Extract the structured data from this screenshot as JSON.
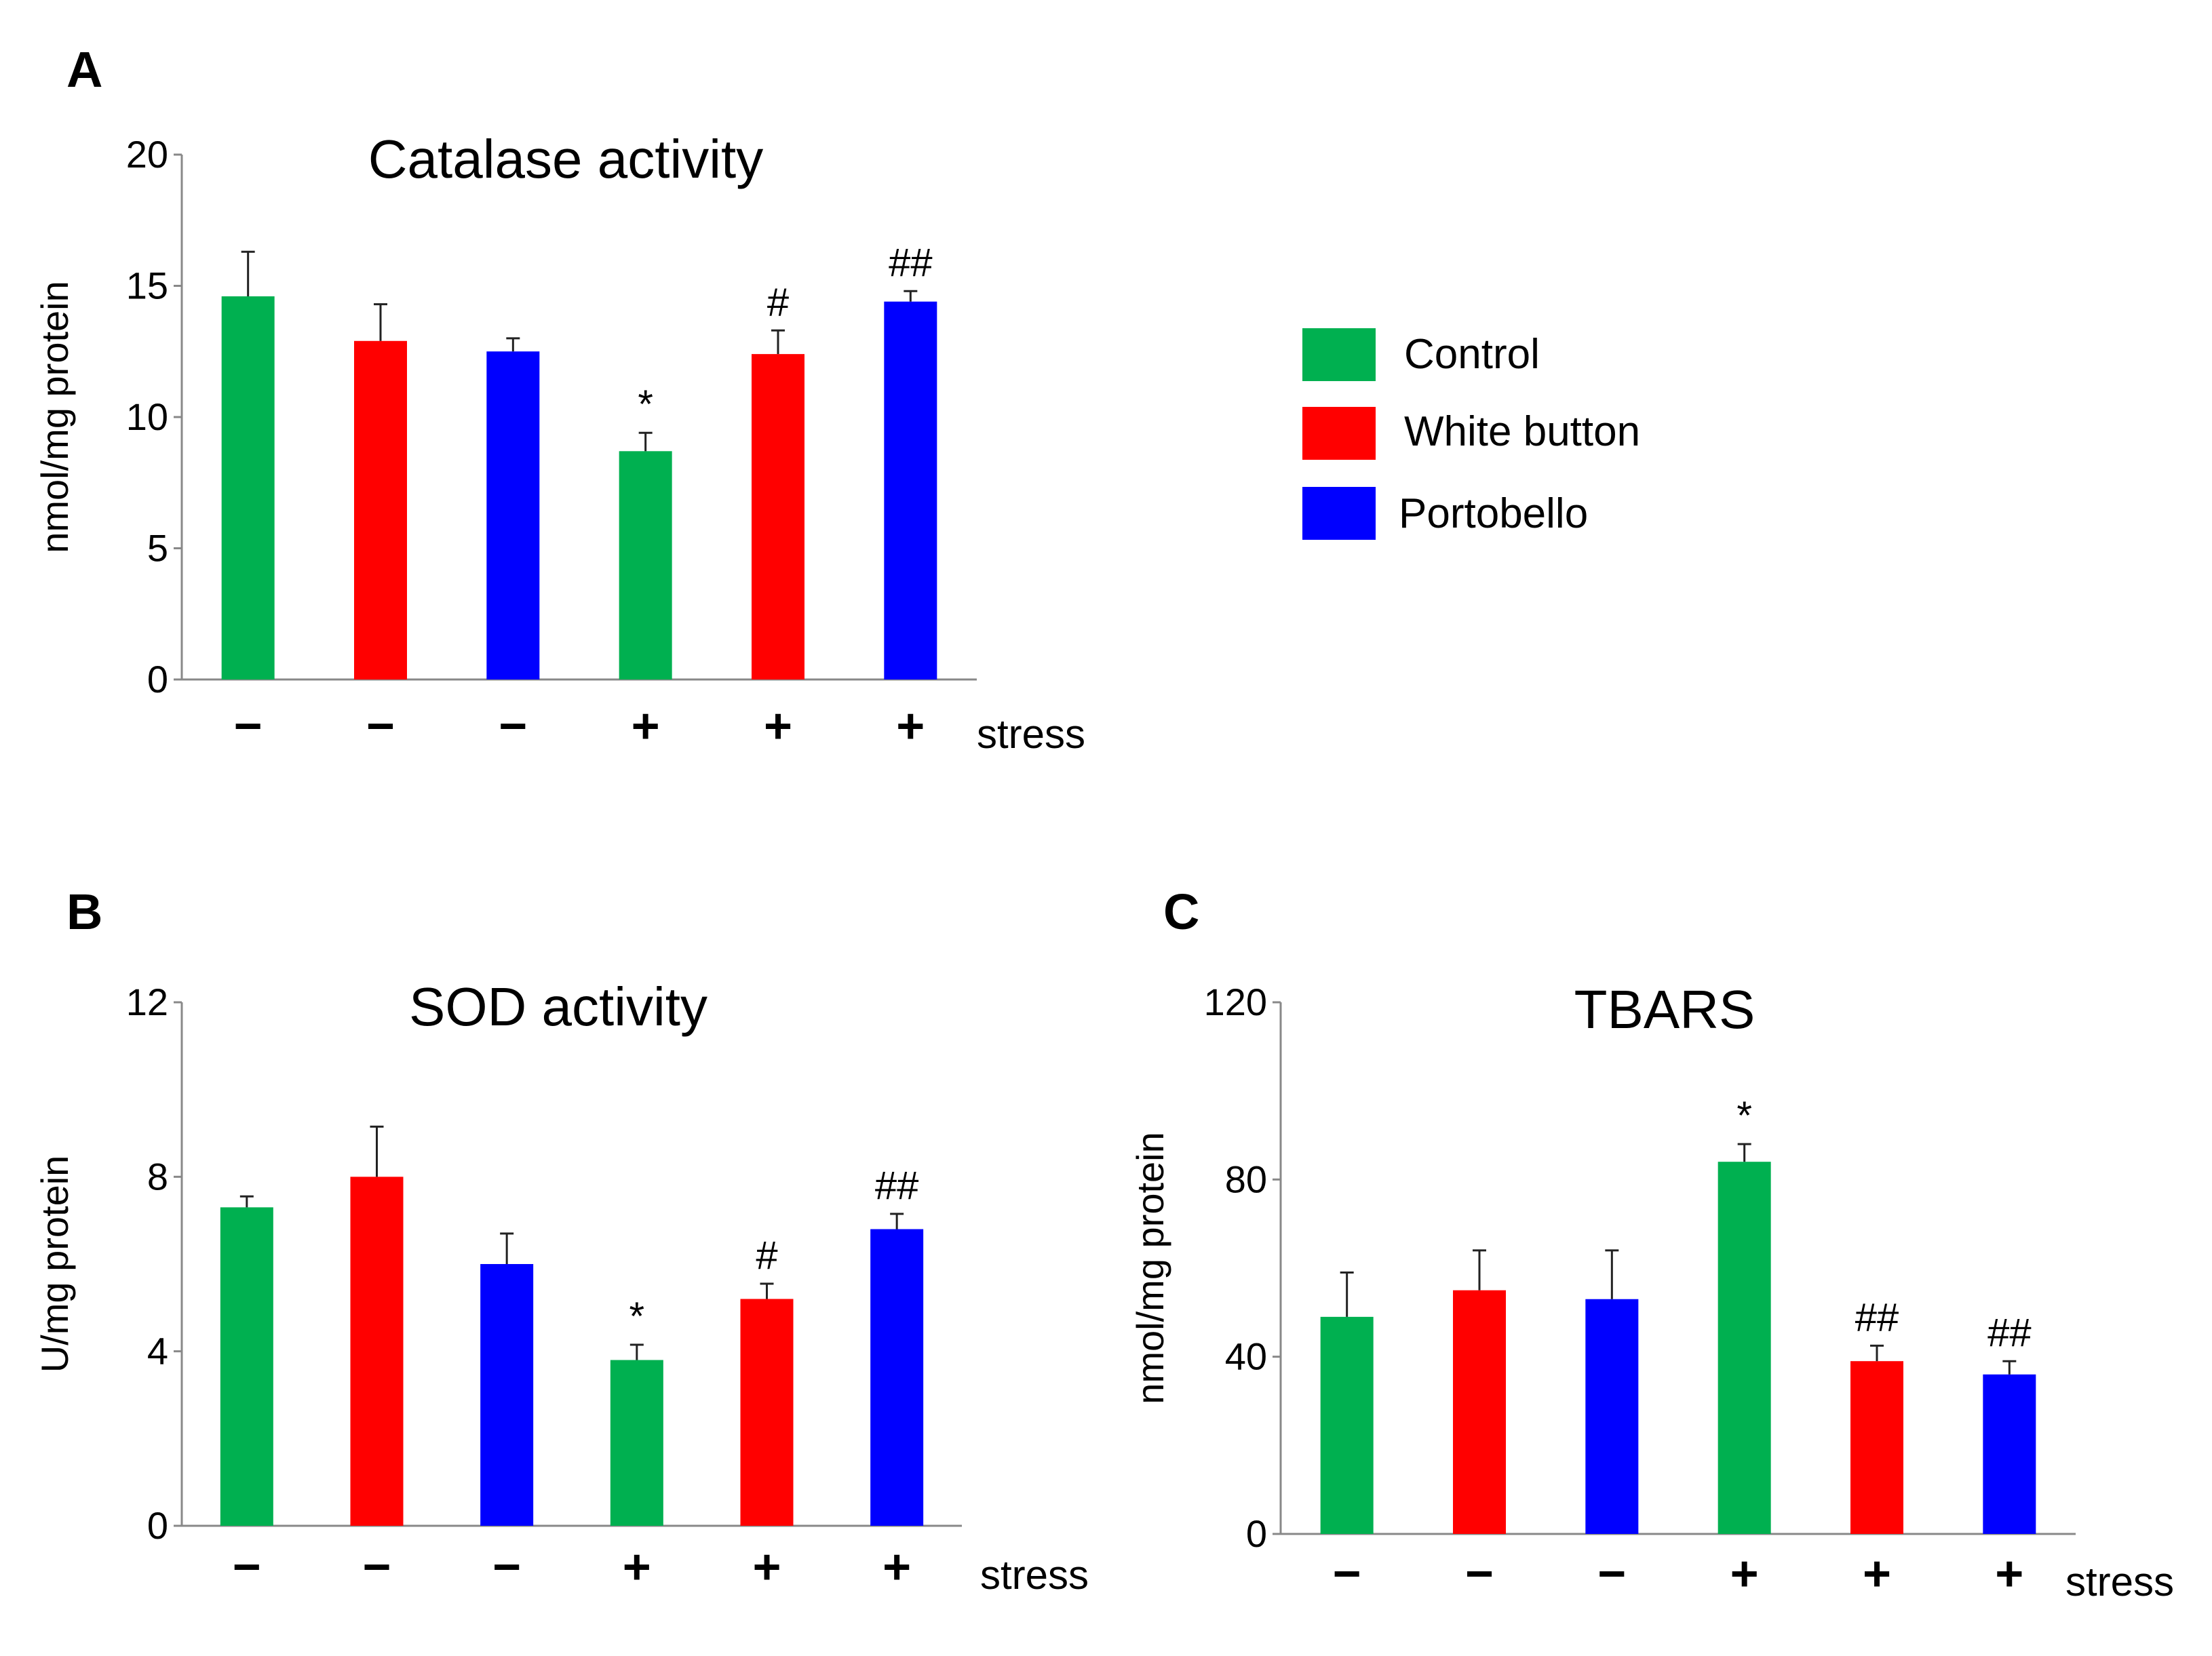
{
  "colors": {
    "control": "#00b050",
    "white_button": "#ff0000",
    "portobello": "#0000ff",
    "axis": "#888888"
  },
  "legend": [
    {
      "label": "Control",
      "color": "#00b050"
    },
    {
      "label": "White button",
      "color": "#ff0000"
    },
    {
      "label": "Portobello",
      "color": "#0000ff"
    }
  ],
  "chart_data": [
    {
      "panel": "A",
      "type": "bar",
      "title": "Catalase activity",
      "ylabel": "nmol/mg protein",
      "xlabel": "stress",
      "ylim": [
        0,
        20
      ],
      "yticks": [
        0,
        5,
        10,
        15,
        20
      ],
      "categories": [
        "−",
        "−",
        "−",
        "+",
        "+",
        "+"
      ],
      "groups": [
        "Control",
        "White button",
        "Portobello",
        "Control",
        "White button",
        "Portobello"
      ],
      "values": [
        14.6,
        12.9,
        12.5,
        8.7,
        12.4,
        14.4
      ],
      "errors": [
        1.7,
        1.4,
        0.5,
        0.7,
        0.9,
        0.4
      ],
      "annotations": [
        "",
        "",
        "",
        "*",
        "#",
        "##"
      ]
    },
    {
      "panel": "B",
      "type": "bar",
      "title": "SOD activity",
      "ylabel": "U/mg protein",
      "xlabel": "stress",
      "ylim": [
        0,
        12
      ],
      "yticks": [
        0,
        4,
        8,
        12
      ],
      "categories": [
        "−",
        "−",
        "−",
        "+",
        "+",
        "+"
      ],
      "groups": [
        "Control",
        "White button",
        "Portobello",
        "Control",
        "White button",
        "Portobello"
      ],
      "values": [
        7.3,
        8.0,
        6.0,
        3.8,
        5.2,
        6.8
      ],
      "errors": [
        0.25,
        1.15,
        0.7,
        0.35,
        0.35,
        0.35
      ],
      "annotations": [
        "",
        "",
        "",
        "*",
        "#",
        "##"
      ]
    },
    {
      "panel": "C",
      "type": "bar",
      "title": "TBARS",
      "ylabel": "nmol/mg protein",
      "xlabel": "stress",
      "ylim": [
        0,
        120
      ],
      "yticks": [
        0,
        40,
        80,
        120
      ],
      "categories": [
        "−",
        "−",
        "−",
        "+",
        "+",
        "+"
      ],
      "groups": [
        "Control",
        "White button",
        "Portobello",
        "Control",
        "White button",
        "Portobello"
      ],
      "values": [
        49,
        55,
        53,
        84,
        39,
        36
      ],
      "errors": [
        10,
        9,
        11,
        4,
        3.5,
        3
      ],
      "annotations": [
        "",
        "",
        "",
        "*",
        "##",
        "##"
      ]
    }
  ]
}
